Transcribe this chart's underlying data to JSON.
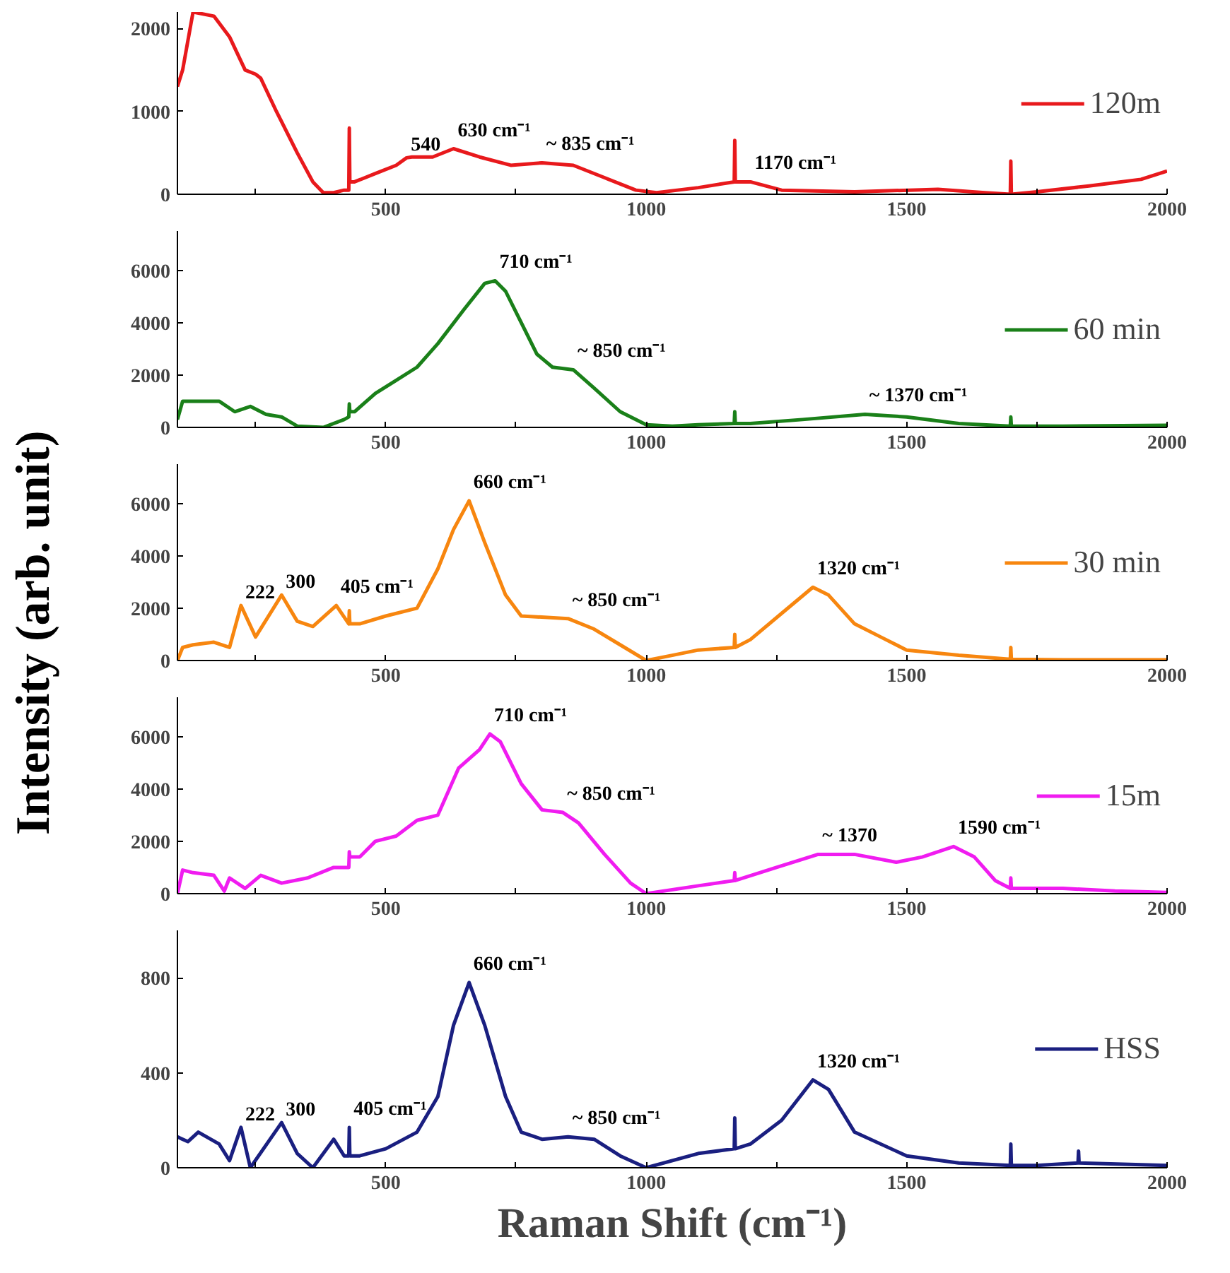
{
  "chart_data": [
    {
      "type": "line",
      "xlim": [
        100,
        2000
      ],
      "ylim": [
        0,
        2200
      ],
      "xticks": [
        {
          "value": 250,
          "label": null
        },
        500,
        {
          "value": 750,
          "label": null
        },
        1000,
        {
          "value": 1250,
          "label": null
        },
        1500,
        {
          "value": 1750,
          "label": null
        },
        2000
      ],
      "yticks": [
        0,
        1000,
        2000
      ],
      "grid": false,
      "legend": "right",
      "series": [
        {
          "name": "120m",
          "color": "#e8191c",
          "x": [
            100,
            110,
            130,
            170,
            200,
            230,
            250,
            260,
            290,
            330,
            360,
            380,
            400,
            420,
            429,
            430,
            431,
            440,
            480,
            520,
            540,
            550,
            590,
            630,
            680,
            740,
            800,
            860,
            920,
            980,
            1020,
            1100,
            1169,
            1170,
            1171,
            1200,
            1260,
            1400,
            1560,
            1650,
            1699,
            1700,
            1701,
            1750,
            1850,
            1950,
            2000
          ],
          "values": [
            1300,
            1500,
            2200,
            2150,
            1900,
            1500,
            1450,
            1400,
            1000,
            500,
            150,
            20,
            20,
            50,
            50,
            800,
            150,
            150,
            250,
            350,
            440,
            450,
            450,
            550,
            450,
            350,
            380,
            350,
            200,
            50,
            20,
            80,
            150,
            650,
            150,
            150,
            50,
            30,
            60,
            20,
            0,
            400,
            0,
            30,
            100,
            180,
            280
          ]
        }
      ],
      "annotations": [
        {
          "text": "540",
          "x": 540,
          "y": 440
        },
        {
          "text": "630 cm⁻¹",
          "x": 630,
          "y": 550
        },
        {
          "text": "~ 835 cm⁻¹",
          "x": 800,
          "y": 380
        },
        {
          "text": "1170 cm⁻¹",
          "x": 1200,
          "y": 150
        }
      ]
    },
    {
      "type": "line",
      "xlim": [
        100,
        2000
      ],
      "ylim": [
        0,
        7500
      ],
      "xticks": [
        {
          "value": 250,
          "label": null
        },
        500,
        {
          "value": 750,
          "label": null
        },
        1000,
        {
          "value": 1250,
          "label": null
        },
        1500,
        {
          "value": 1750,
          "label": null
        },
        2000
      ],
      "yticks": [
        0,
        2000,
        4000,
        6000
      ],
      "grid": false,
      "legend": "right",
      "series": [
        {
          "name": "60 min",
          "color": "#1a8019",
          "x": [
            100,
            110,
            150,
            180,
            210,
            240,
            270,
            300,
            330,
            380,
            420,
            429,
            430,
            431,
            440,
            480,
            520,
            560,
            600,
            650,
            690,
            710,
            730,
            760,
            790,
            820,
            860,
            900,
            950,
            1000,
            1050,
            1100,
            1169,
            1170,
            1171,
            1200,
            1300,
            1420,
            1500,
            1600,
            1699,
            1700,
            1701,
            1800,
            2000
          ],
          "values": [
            300,
            1000,
            1000,
            1000,
            600,
            800,
            500,
            400,
            50,
            0,
            300,
            400,
            900,
            600,
            600,
            1300,
            1800,
            2300,
            3200,
            4500,
            5500,
            5600,
            5200,
            4000,
            2800,
            2300,
            2200,
            1500,
            600,
            100,
            50,
            100,
            150,
            600,
            150,
            150,
            300,
            500,
            400,
            150,
            50,
            400,
            50,
            50,
            80
          ]
        }
      ],
      "annotations": [
        {
          "text": "710 cm⁻¹",
          "x": 710,
          "y": 5600
        },
        {
          "text": "~ 850 cm⁻¹",
          "x": 860,
          "y": 2200
        },
        {
          "text": "~ 1370 cm⁻¹",
          "x": 1420,
          "y": 500
        }
      ]
    },
    {
      "type": "line",
      "xlim": [
        100,
        2000
      ],
      "ylim": [
        0,
        7500
      ],
      "xticks": [
        {
          "value": 250,
          "label": null
        },
        500,
        {
          "value": 750,
          "label": null
        },
        1000,
        {
          "value": 1250,
          "label": null
        },
        1500,
        {
          "value": 1750,
          "label": null
        },
        2000
      ],
      "yticks": [
        0,
        2000,
        4000,
        6000
      ],
      "grid": false,
      "legend": "right",
      "ylabel": "Intensity (arb. unit)",
      "series": [
        {
          "name": "30 min",
          "color": "#f7860f",
          "x": [
            100,
            110,
            130,
            170,
            200,
            222,
            250,
            300,
            330,
            360,
            405,
            429,
            430,
            431,
            450,
            500,
            560,
            600,
            630,
            660,
            690,
            730,
            760,
            850,
            900,
            950,
            1000,
            1050,
            1100,
            1169,
            1170,
            1171,
            1200,
            1260,
            1320,
            1350,
            1400,
            1450,
            1500,
            1600,
            1699,
            1700,
            1701,
            1800,
            2000
          ],
          "values": [
            0,
            500,
            600,
            700,
            500,
            2100,
            900,
            2500,
            1500,
            1300,
            2100,
            1400,
            1900,
            1400,
            1400,
            1700,
            2000,
            3500,
            5000,
            6100,
            4500,
            2500,
            1700,
            1600,
            1200,
            600,
            0,
            200,
            400,
            500,
            1000,
            500,
            800,
            1800,
            2800,
            2500,
            1400,
            900,
            400,
            200,
            50,
            500,
            50,
            30,
            30
          ]
        }
      ],
      "annotations": [
        {
          "text": "222",
          "x": 222,
          "y": 2100
        },
        {
          "text": "300",
          "x": 300,
          "y": 2500
        },
        {
          "text": "405 cm⁻¹",
          "x": 405,
          "y": 2100
        },
        {
          "text": "660 cm⁻¹",
          "x": 660,
          "y": 6100
        },
        {
          "text": "~ 850 cm⁻¹",
          "x": 850,
          "y": 1600
        },
        {
          "text": "1320 cm⁻¹",
          "x": 1320,
          "y": 2800
        }
      ]
    },
    {
      "type": "line",
      "xlim": [
        100,
        2000
      ],
      "ylim": [
        0,
        7500
      ],
      "xticks": [
        {
          "value": 250,
          "label": null
        },
        500,
        {
          "value": 750,
          "label": null
        },
        1000,
        {
          "value": 1250,
          "label": null
        },
        1500,
        {
          "value": 1750,
          "label": null
        },
        2000
      ],
      "yticks": [
        0,
        2000,
        4000,
        6000
      ],
      "grid": false,
      "legend": "right",
      "series": [
        {
          "name": "15m",
          "color": "#f01cf0",
          "x": [
            100,
            110,
            130,
            170,
            190,
            200,
            230,
            260,
            300,
            350,
            400,
            429,
            430,
            431,
            450,
            480,
            520,
            560,
            600,
            640,
            680,
            700,
            720,
            760,
            800,
            840,
            870,
            920,
            970,
            1000,
            1100,
            1169,
            1170,
            1171,
            1250,
            1330,
            1400,
            1480,
            1530,
            1590,
            1630,
            1670,
            1699,
            1700,
            1701,
            1800,
            1900,
            2000
          ],
          "values": [
            0,
            900,
            800,
            700,
            100,
            600,
            200,
            700,
            400,
            600,
            1000,
            1000,
            1600,
            1400,
            1400,
            2000,
            2200,
            2800,
            3000,
            4800,
            5500,
            6100,
            5800,
            4200,
            3200,
            3100,
            2700,
            1500,
            400,
            0,
            300,
            500,
            800,
            500,
            1000,
            1500,
            1500,
            1200,
            1400,
            1800,
            1400,
            500,
            200,
            600,
            200,
            200,
            100,
            50
          ]
        }
      ],
      "annotations": [
        {
          "text": "710 cm⁻¹",
          "x": 700,
          "y": 6100
        },
        {
          "text": "~ 850 cm⁻¹",
          "x": 840,
          "y": 3100
        },
        {
          "text": "~ 1370",
          "x": 1330,
          "y": 1500
        },
        {
          "text": "1590 cm⁻¹",
          "x": 1590,
          "y": 1800
        }
      ]
    },
    {
      "type": "line",
      "xlim": [
        100,
        2000
      ],
      "ylim": [
        0,
        1000
      ],
      "xticks": [
        {
          "value": 250,
          "label": null
        },
        500,
        {
          "value": 750,
          "label": null
        },
        1000,
        {
          "value": 1250,
          "label": null
        },
        1500,
        {
          "value": 1750,
          "label": null
        },
        2000
      ],
      "yticks": [
        0,
        400,
        800
      ],
      "grid": false,
      "legend": "right",
      "xlabel": "Raman Shift (cm⁻¹)",
      "series": [
        {
          "name": "HSS",
          "color": "#1a1f80",
          "x": [
            100,
            120,
            140,
            180,
            200,
            222,
            240,
            300,
            330,
            360,
            400,
            420,
            429,
            430,
            431,
            450,
            500,
            560,
            600,
            630,
            660,
            690,
            730,
            760,
            800,
            850,
            900,
            950,
            1000,
            1100,
            1169,
            1170,
            1171,
            1200,
            1260,
            1320,
            1350,
            1400,
            1500,
            1600,
            1699,
            1700,
            1701,
            1750,
            1829,
            1830,
            1831,
            2000
          ],
          "values": [
            130,
            110,
            150,
            100,
            30,
            170,
            0,
            190,
            60,
            0,
            120,
            50,
            50,
            170,
            50,
            50,
            80,
            150,
            300,
            600,
            780,
            600,
            300,
            150,
            120,
            130,
            120,
            50,
            0,
            60,
            80,
            210,
            80,
            100,
            200,
            370,
            330,
            150,
            50,
            20,
            10,
            100,
            10,
            10,
            20,
            70,
            20,
            10
          ]
        }
      ],
      "annotations": [
        {
          "text": "222",
          "x": 222,
          "y": 170
        },
        {
          "text": "300",
          "x": 300,
          "y": 190
        },
        {
          "text": "405 cm⁻¹",
          "x": 430,
          "y": 170
        },
        {
          "text": "660 cm⁻¹",
          "x": 660,
          "y": 780
        },
        {
          "text": "~ 850 cm⁻¹",
          "x": 850,
          "y": 130
        },
        {
          "text": "1320 cm⁻¹",
          "x": 1320,
          "y": 370
        }
      ]
    }
  ]
}
